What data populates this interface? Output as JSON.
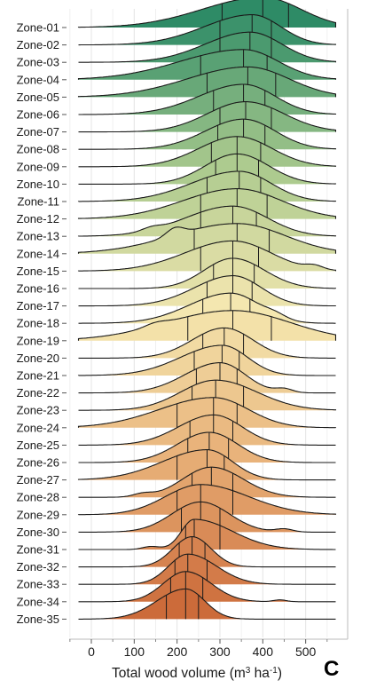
{
  "chart_data": {
    "type": "ridgeline",
    "panel_letter": "C",
    "title": "",
    "xlabel": "Total wood volume (m³ ha⁻¹)",
    "xlabel_parts": {
      "pre": "Total wood volume (m",
      "sup1": "3",
      "mid": " ha",
      "sup2": "-1",
      "post": ")"
    },
    "ylabel": "",
    "xlim": [
      -30,
      570
    ],
    "xticks": [
      0,
      100,
      200,
      300,
      400,
      500
    ],
    "grid": true,
    "quantile_lines": "quartiles (25th, 50th, 75th percentile) per zone",
    "fill_gradient": [
      "#2e8b66",
      "#a9c98d",
      "#f4e7b0",
      "#e8b078",
      "#cc6b3a"
    ],
    "zones": [
      "Zone-01",
      "Zone-02",
      "Zone-03",
      "Zone-04",
      "Zone-05",
      "Zone-06",
      "Zone-07",
      "Zone-08",
      "Zone-09",
      "Zone-10",
      "Zone-11",
      "Zone-12",
      "Zone-13",
      "Zone-14",
      "Zone-15",
      "Zone-16",
      "Zone-17",
      "Zone-18",
      "Zone-19",
      "Zone-20",
      "Zone-21",
      "Zone-22",
      "Zone-23",
      "Zone-24",
      "Zone-25",
      "Zone-26",
      "Zone-27",
      "Zone-28",
      "Zone-29",
      "Zone-30",
      "Zone-31",
      "Zone-32",
      "Zone-33",
      "Zone-34",
      "Zone-35"
    ],
    "quartiles": [
      [
        305,
        400,
        460
      ],
      [
        300,
        375,
        420
      ],
      [
        300,
        370,
        420
      ],
      [
        255,
        355,
        410
      ],
      [
        270,
        365,
        430
      ],
      [
        285,
        355,
        405
      ],
      [
        300,
        360,
        420
      ],
      [
        295,
        355,
        405
      ],
      [
        280,
        340,
        395
      ],
      [
        290,
        340,
        390
      ],
      [
        270,
        345,
        395
      ],
      [
        255,
        340,
        410
      ],
      [
        255,
        330,
        385
      ],
      [
        240,
        340,
        415
      ],
      [
        255,
        330,
        390
      ],
      [
        285,
        330,
        380
      ],
      [
        270,
        330,
        375
      ],
      [
        260,
        325,
        370
      ],
      [
        225,
        330,
        420
      ],
      [
        260,
        310,
        355
      ],
      [
        240,
        305,
        345
      ],
      [
        245,
        300,
        340
      ],
      [
        235,
        290,
        355
      ],
      [
        200,
        285,
        340
      ],
      [
        230,
        285,
        330
      ],
      [
        225,
        275,
        320
      ],
      [
        200,
        270,
        310
      ],
      [
        235,
        280,
        330
      ],
      [
        200,
        255,
        330
      ],
      [
        210,
        255,
        300
      ],
      [
        220,
        240,
        300
      ],
      [
        205,
        235,
        265
      ],
      [
        195,
        225,
        270
      ],
      [
        185,
        220,
        260
      ],
      [
        175,
        220,
        250
      ]
    ],
    "extra_bumps": [
      [],
      [],
      [],
      [],
      [],
      [],
      [],
      [],
      [],
      [],
      [],
      [],
      [
        [
          140,
          0.1,
          22
        ]
      ],
      [
        [
          195,
          0.25,
          20
        ]
      ],
      [
        [
          520,
          0.12,
          20
        ]
      ],
      [],
      [],
      [
        [
          430,
          0.12,
          25
        ]
      ],
      [
        [
          150,
          0.1,
          25
        ]
      ],
      [],
      [],
      [
        [
          450,
          0.12,
          20
        ]
      ],
      [],
      [],
      [],
      [],
      [],
      [
        [
          120,
          0.1,
          22
        ]
      ],
      [],
      [
        [
          450,
          0.1,
          20
        ]
      ],
      [
        [
          140,
          0.1,
          20
        ]
      ],
      [],
      [],
      [
        [
          440,
          0.06,
          15
        ]
      ],
      []
    ]
  }
}
